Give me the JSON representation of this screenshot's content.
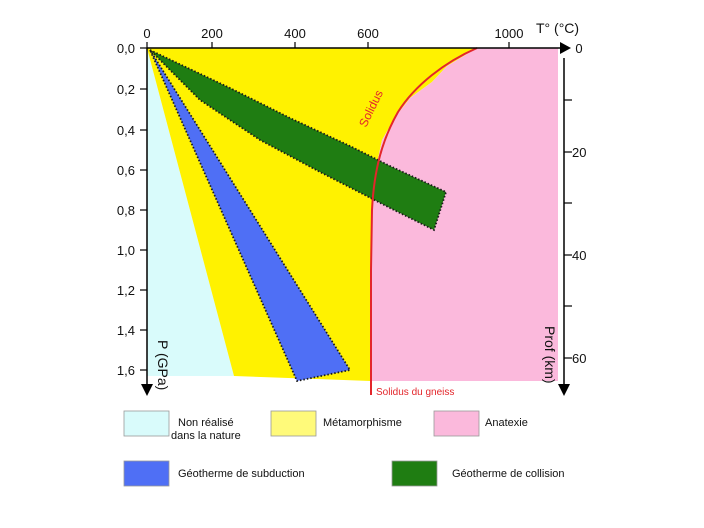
{
  "axes": {
    "temperature_title": "T° (°C)",
    "pressure_title": "P (GPa)",
    "depth_title": "Prof (km)",
    "temperature_ticks": [
      "0",
      "200",
      "400",
      "600",
      "1000"
    ],
    "pressure_ticks": [
      "0,0",
      "0,2",
      "0,4",
      "0,6",
      "0,8",
      "1,0",
      "1,2",
      "1,4",
      "1,6"
    ],
    "depth_ticks": [
      "0",
      "20",
      "40",
      "60"
    ]
  },
  "curves": {
    "solidus": "Solidus",
    "solidus_gneiss": "Solidus du gneiss"
  },
  "legend": {
    "non_realise_line1": "Non réalisé",
    "non_realise_line2": "dans la nature",
    "metamorphisme": "Métamorphisme",
    "anatexie": "Anatexie",
    "subduction": "Géotherme de subduction",
    "collision": "Géotherme de collision"
  },
  "colors": {
    "non_realise": "#d9fbfb",
    "metamorphisme": "#fff200",
    "anatexie": "#fbb9dc",
    "subduction": "#4f6ff5",
    "collision": "#1f7d12",
    "solidus": "#e3262b"
  }
}
